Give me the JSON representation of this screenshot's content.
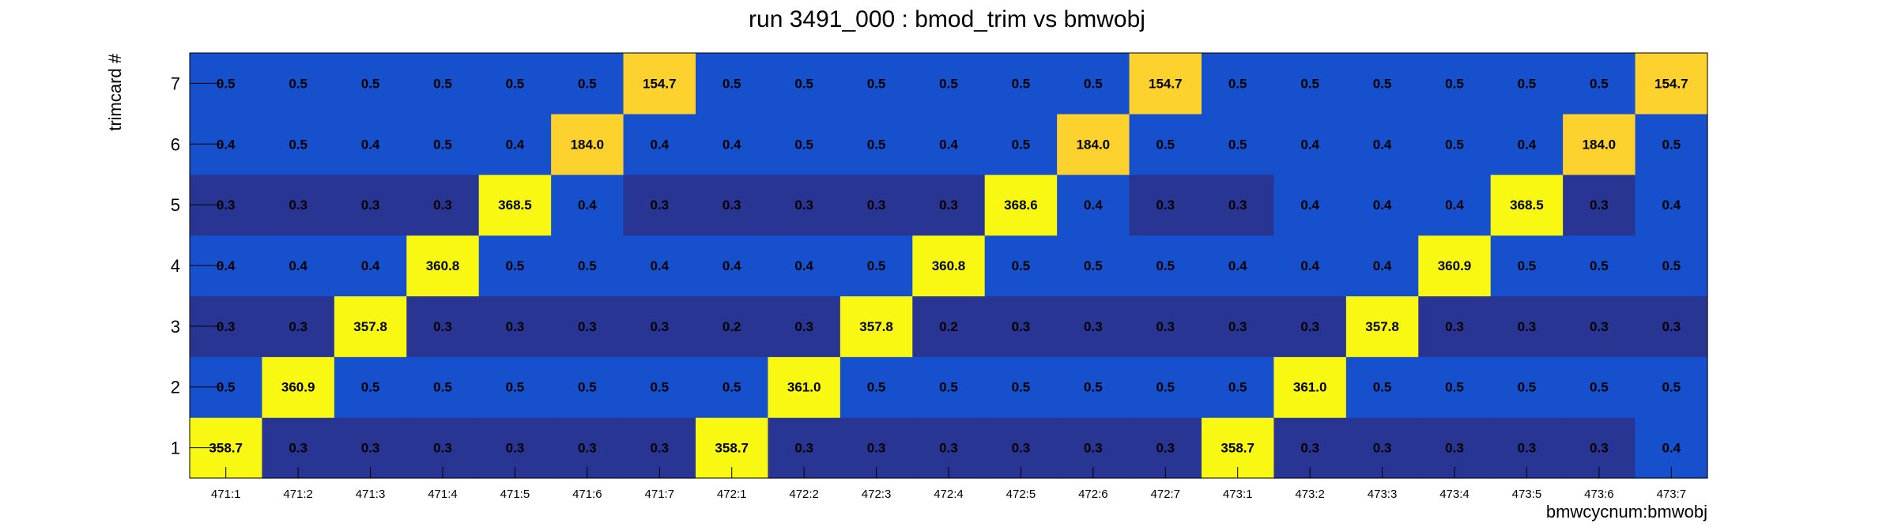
{
  "chart_data": {
    "type": "heatmap",
    "title": "run 3491_000 : bmod_trim vs bmwobj",
    "xlabel": "bmwcycnum:bmwobj",
    "ylabel": "trimcard #",
    "x_categories": [
      "471:1",
      "471:2",
      "471:3",
      "471:4",
      "471:5",
      "471:6",
      "471:7",
      "472:1",
      "472:2",
      "472:3",
      "472:4",
      "472:5",
      "472:6",
      "472:7",
      "473:1",
      "473:2",
      "473:3",
      "473:4",
      "473:5",
      "473:6",
      "473:7"
    ],
    "y_categories": [
      "1",
      "2",
      "3",
      "4",
      "5",
      "6",
      "7"
    ],
    "values": [
      [
        358.7,
        0.3,
        0.3,
        0.3,
        0.3,
        0.3,
        0.3,
        358.7,
        0.3,
        0.3,
        0.3,
        0.3,
        0.3,
        0.3,
        358.7,
        0.3,
        0.3,
        0.3,
        0.3,
        0.3,
        0.4
      ],
      [
        0.5,
        360.9,
        0.5,
        0.5,
        0.5,
        0.5,
        0.5,
        0.5,
        361.0,
        0.5,
        0.5,
        0.5,
        0.5,
        0.5,
        0.5,
        361.0,
        0.5,
        0.5,
        0.5,
        0.5,
        0.5
      ],
      [
        0.3,
        0.3,
        357.8,
        0.3,
        0.3,
        0.3,
        0.3,
        0.2,
        0.3,
        357.8,
        0.2,
        0.3,
        0.3,
        0.3,
        0.3,
        0.3,
        357.8,
        0.3,
        0.3,
        0.3,
        0.3
      ],
      [
        0.4,
        0.4,
        0.4,
        360.8,
        0.5,
        0.5,
        0.4,
        0.4,
        0.4,
        0.5,
        360.8,
        0.5,
        0.5,
        0.5,
        0.4,
        0.4,
        0.4,
        360.9,
        0.5,
        0.5,
        0.5
      ],
      [
        0.3,
        0.3,
        0.3,
        0.3,
        368.5,
        0.4,
        0.3,
        0.3,
        0.3,
        0.3,
        0.3,
        368.6,
        0.4,
        0.3,
        0.3,
        0.4,
        0.4,
        0.4,
        368.5,
        0.3,
        0.4
      ],
      [
        0.4,
        0.5,
        0.4,
        0.5,
        0.4,
        184.0,
        0.4,
        0.4,
        0.5,
        0.5,
        0.4,
        0.5,
        184.0,
        0.5,
        0.5,
        0.4,
        0.4,
        0.5,
        0.4,
        184.0,
        0.5
      ],
      [
        0.5,
        0.5,
        0.5,
        0.5,
        0.5,
        0.5,
        154.7,
        0.5,
        0.5,
        0.5,
        0.5,
        0.5,
        0.5,
        154.7,
        0.5,
        0.5,
        0.5,
        0.5,
        0.5,
        0.5,
        154.7
      ]
    ],
    "colors": {
      "low_dark": "#283593",
      "low": "#1650cc",
      "mid": "#fdd12e",
      "high": "#f9f813"
    },
    "grid": false,
    "legend": "none"
  }
}
